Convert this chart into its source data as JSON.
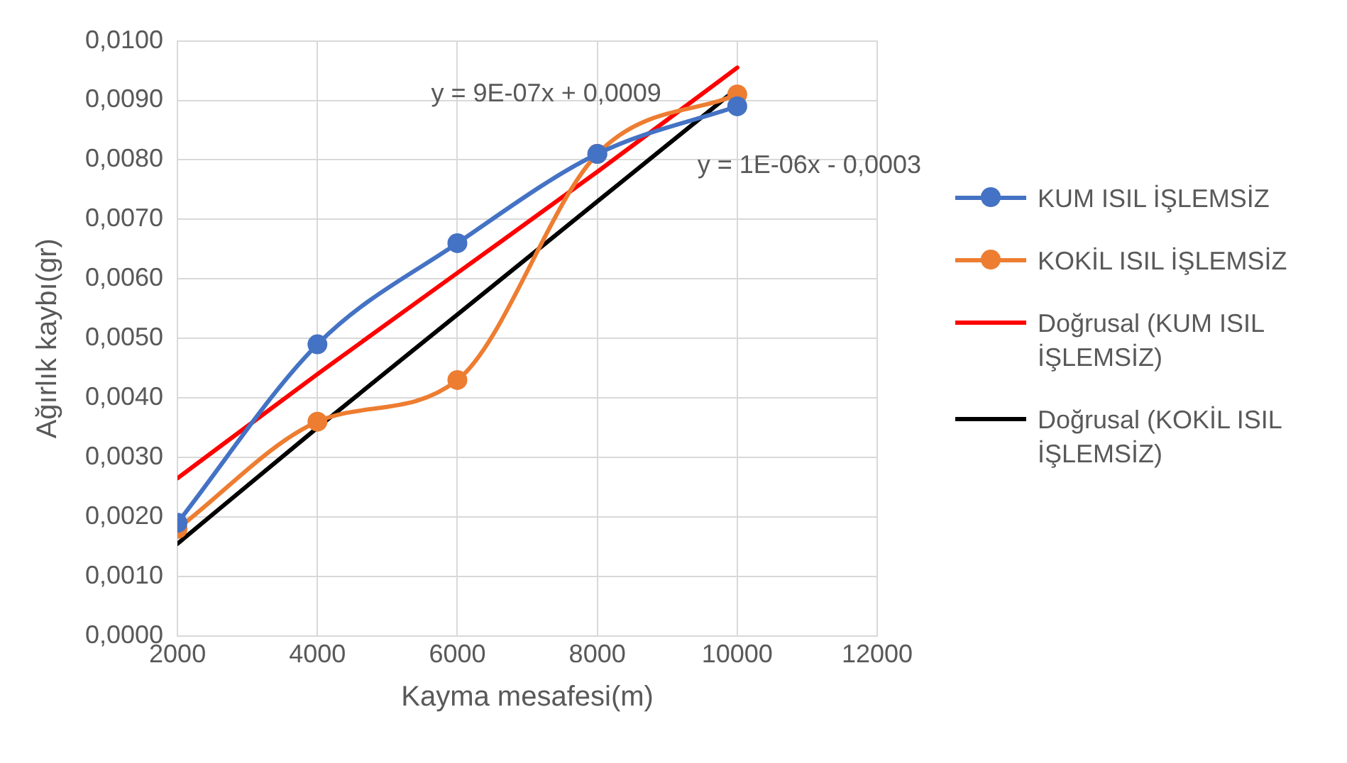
{
  "chart_data": {
    "type": "line",
    "xlabel": "Kayma mesafesi(m)",
    "ylabel": "Ağırlık kaybı(gr)",
    "x": [
      2000,
      4000,
      6000,
      8000,
      10000
    ],
    "series": [
      {
        "name": "KUM ISIL İŞLEMSİZ",
        "color": "#4472c4",
        "marker": "circle",
        "values": [
          0.0019,
          0.0049,
          0.0066,
          0.0081,
          0.0089
        ]
      },
      {
        "name": "KOKİL ISIL İŞLEMSİZ",
        "color": "#ed7d31",
        "marker": "circle",
        "values": [
          0.0018,
          0.0036,
          0.0043,
          0.0081,
          0.0091
        ]
      },
      {
        "name": "Doğrusal (KUM ISIL İŞLEMSİZ)",
        "color": "#ff0000",
        "marker": "none",
        "values": [
          0.00265,
          0.0044,
          0.0061,
          0.0078,
          0.00955
        ]
      },
      {
        "name": "Doğrusal (KOKİL ISIL İŞLEMSİZ)",
        "color": "#000000",
        "marker": "none",
        "values": [
          0.00155,
          0.0035,
          0.0054,
          0.0073,
          0.0092
        ]
      }
    ],
    "annotations": [
      "y = 9E-07x + 0,0009",
      "y = 1E-06x - 0,0003"
    ],
    "xlim": [
      2000,
      12000
    ],
    "xticks": [
      2000,
      4000,
      6000,
      8000,
      10000,
      12000
    ],
    "ylim": [
      0,
      0.01
    ],
    "yticks": [
      {
        "value": 0,
        "label": "0,0000"
      },
      {
        "value": 0.001,
        "label": "0,0010"
      },
      {
        "value": 0.002,
        "label": "0,0020"
      },
      {
        "value": 0.003,
        "label": "0,0030"
      },
      {
        "value": 0.004,
        "label": "0,0040"
      },
      {
        "value": 0.005,
        "label": "0,0050"
      },
      {
        "value": 0.006,
        "label": "0,0060"
      },
      {
        "value": 0.007,
        "label": "0,0070"
      },
      {
        "value": 0.008,
        "label": "0,0080"
      },
      {
        "value": 0.009,
        "label": "0,0090"
      },
      {
        "value": 0.01,
        "label": "0,0100"
      }
    ],
    "grid": true,
    "legend": "right",
    "line_style": "solid"
  }
}
